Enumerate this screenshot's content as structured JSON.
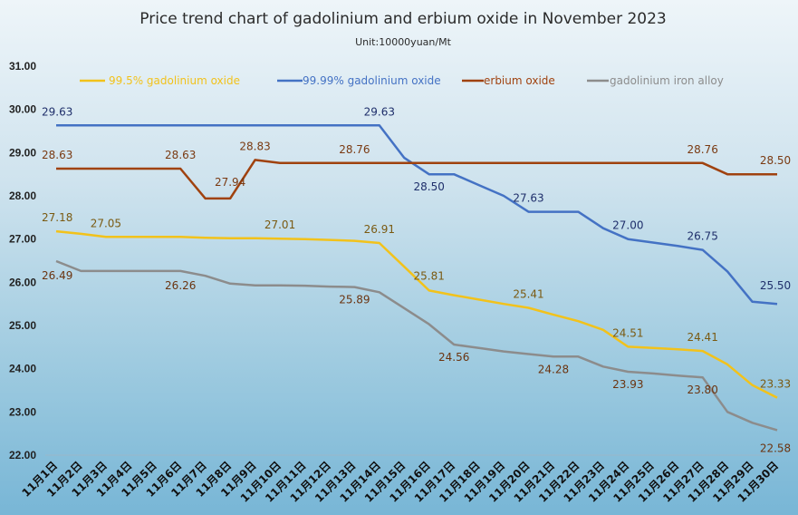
{
  "chart_data": {
    "type": "line",
    "title": "Price trend chart of gadolinium and erbium oxide in November 2023",
    "subtitle": "Unit:10000yuan/Mt",
    "ylim": [
      22.0,
      31.0
    ],
    "yticks": [
      "31.00",
      "30.00",
      "29.00",
      "28.00",
      "27.00",
      "26.00",
      "25.00",
      "24.00",
      "23.00",
      "22.00"
    ],
    "categories": [
      "11月1日",
      "11月2日",
      "11月3日",
      "11月4日",
      "11月5日",
      "11月6日",
      "11月7日",
      "11月8日",
      "11月9日",
      "11月10日",
      "11月11日",
      "11月12日",
      "11月13日",
      "11月14日",
      "11月15日",
      "11月16日",
      "11月17日",
      "11月18日",
      "11月19日",
      "11月20日",
      "11月21日",
      "11月22日",
      "11月23日",
      "11月24日",
      "11月25日",
      "11月26日",
      "11月27日",
      "11月28日",
      "11月29日",
      "11月30日"
    ],
    "grid": false,
    "legend_position": "top",
    "series": [
      {
        "name": "99.5% gadolinium oxide",
        "color": "#f2c21b",
        "label_color": "#7a5a12",
        "values": [
          27.18,
          27.12,
          27.05,
          27.05,
          27.05,
          27.05,
          27.03,
          27.02,
          27.02,
          27.01,
          27.0,
          26.98,
          26.96,
          26.91,
          26.36,
          25.81,
          25.7,
          25.6,
          25.5,
          25.41,
          25.25,
          25.1,
          24.9,
          24.51,
          24.48,
          24.45,
          24.41,
          24.1,
          23.62,
          23.33
        ],
        "labels": [
          {
            "index": 0,
            "text": "27.18"
          },
          {
            "index": 2,
            "text": "27.05"
          },
          {
            "index": 9,
            "text": "27.01"
          },
          {
            "index": 13,
            "text": "26.91"
          },
          {
            "index": 15,
            "text": "25.81"
          },
          {
            "index": 19,
            "text": "25.41"
          },
          {
            "index": 23,
            "text": "24.51"
          },
          {
            "index": 26,
            "text": "24.41"
          },
          {
            "index": 29,
            "text": "23.33"
          }
        ]
      },
      {
        "name": "99.99% gadolinium oxide",
        "color": "#4472c4",
        "label_color": "#1f2f6b",
        "values": [
          29.63,
          29.63,
          29.63,
          29.63,
          29.63,
          29.63,
          29.63,
          29.63,
          29.63,
          29.63,
          29.63,
          29.63,
          29.63,
          29.63,
          28.88,
          28.5,
          28.5,
          28.25,
          28.0,
          27.63,
          27.63,
          27.63,
          27.25,
          27.0,
          26.92,
          26.84,
          26.75,
          26.25,
          25.55,
          25.5
        ],
        "labels": [
          {
            "index": 0,
            "text": "29.63"
          },
          {
            "index": 13,
            "text": "29.63"
          },
          {
            "index": 15,
            "text": "28.50"
          },
          {
            "index": 19,
            "text": "27.63"
          },
          {
            "index": 23,
            "text": "27.00"
          },
          {
            "index": 26,
            "text": "26.75"
          },
          {
            "index": 29,
            "text": "25.50"
          }
        ]
      },
      {
        "name": "erbium oxide",
        "color": "#a0420f",
        "label_color": "#7a3a12",
        "values": [
          28.63,
          28.63,
          28.63,
          28.63,
          28.63,
          28.63,
          27.94,
          27.94,
          28.83,
          28.76,
          28.76,
          28.76,
          28.76,
          28.76,
          28.76,
          28.76,
          28.76,
          28.76,
          28.76,
          28.76,
          28.76,
          28.76,
          28.76,
          28.76,
          28.76,
          28.76,
          28.76,
          28.5,
          28.5,
          28.5
        ],
        "labels": [
          {
            "index": 0,
            "text": "28.63"
          },
          {
            "index": 5,
            "text": "28.63"
          },
          {
            "index": 7,
            "text": "27.94"
          },
          {
            "index": 8,
            "text": "28.83"
          },
          {
            "index": 12,
            "text": "28.76"
          },
          {
            "index": 26,
            "text": "28.76"
          },
          {
            "index": 29,
            "text": "28.50"
          }
        ]
      },
      {
        "name": "gadolinium iron alloy",
        "color": "#8c8c8c",
        "label_color": "#6b3410",
        "values": [
          26.49,
          26.26,
          26.26,
          26.26,
          26.26,
          26.26,
          26.15,
          25.97,
          25.93,
          25.93,
          25.92,
          25.9,
          25.89,
          25.77,
          25.4,
          25.03,
          24.56,
          24.48,
          24.4,
          24.34,
          24.28,
          24.28,
          24.05,
          23.93,
          23.89,
          23.84,
          23.8,
          23.0,
          22.75,
          22.58
        ],
        "labels": [
          {
            "index": 0,
            "text": "26.49"
          },
          {
            "index": 5,
            "text": "26.26"
          },
          {
            "index": 12,
            "text": "25.89"
          },
          {
            "index": 16,
            "text": "24.56"
          },
          {
            "index": 20,
            "text": "24.28"
          },
          {
            "index": 23,
            "text": "23.93"
          },
          {
            "index": 26,
            "text": "23.80"
          },
          {
            "index": 29,
            "text": "22.58"
          }
        ]
      }
    ]
  }
}
